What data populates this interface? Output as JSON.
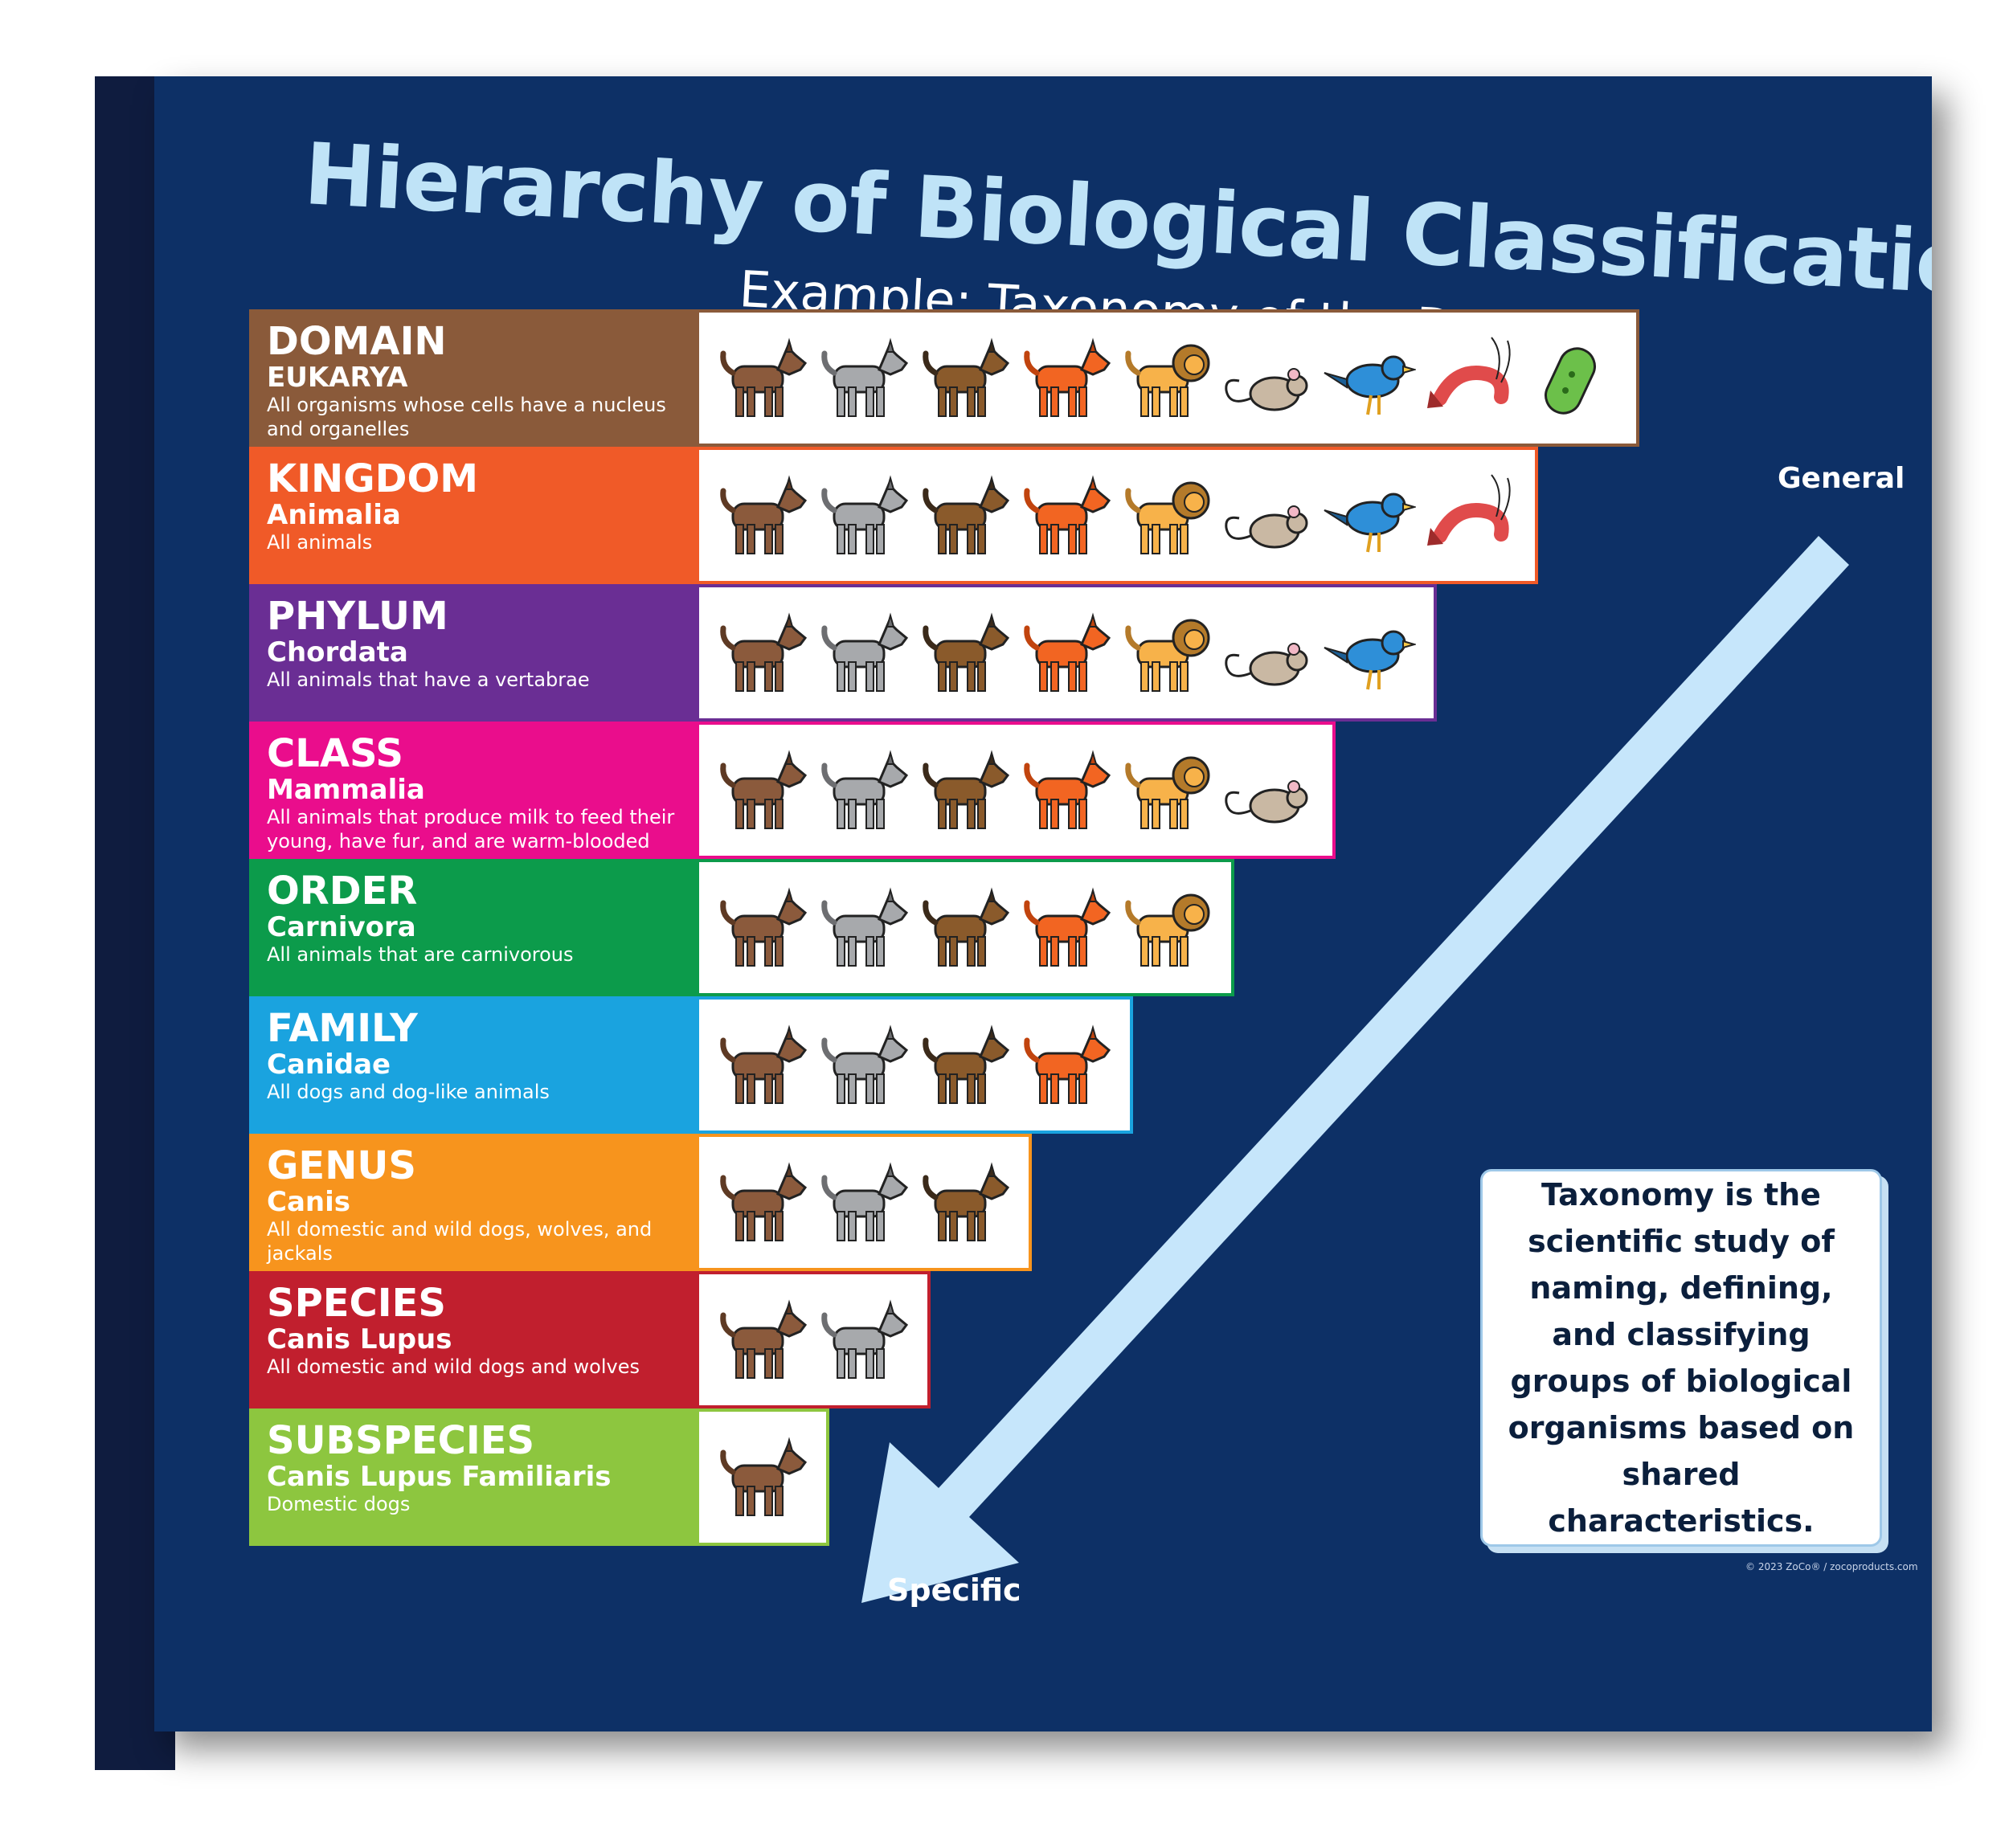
{
  "title": "Hierarchy of Biological Classification",
  "subtitle": "Example: Taxonomy of the Dog",
  "general_label": "General",
  "specific_label": "Specific",
  "definition": "Taxonomy is the scientific study of naming, defining, and classifying groups of biological organisms based on shared characteristics.",
  "copyright": "© 2023 ZoCo® / zocoproducts.com",
  "colors": {
    "background": "#0d3066",
    "arrow": "#c6e6fb",
    "title": "#bfe3f7"
  },
  "animal_icons": [
    "dog-icon",
    "wolf-icon",
    "jackal-icon",
    "fox-icon",
    "lion-icon",
    "mouse-icon",
    "bird-icon",
    "shrimp-icon",
    "bacterium-icon"
  ],
  "ranks": [
    {
      "rank": "DOMAIN",
      "example": "EUKARYA",
      "description": "All organisms whose cells have a nucleus and organelles",
      "color": "#8a5a3a",
      "animal_count": 9
    },
    {
      "rank": "KINGDOM",
      "example": "Animalia",
      "description": "All animals",
      "color": "#f05a28",
      "animal_count": 8
    },
    {
      "rank": "PHYLUM",
      "example": "Chordata",
      "description": "All animals that have a vertabrae",
      "color": "#6a2e94",
      "animal_count": 7
    },
    {
      "rank": "CLASS",
      "example": "Mammalia",
      "description": "All animals that produce milk to feed their young, have fur, and are warm-blooded",
      "color": "#ea0d8c",
      "animal_count": 6
    },
    {
      "rank": "ORDER",
      "example": "Carnivora",
      "description": "All animals that are carnivorous",
      "color": "#0c9b4b",
      "animal_count": 5
    },
    {
      "rank": "FAMILY",
      "example": "Canidae",
      "description": "All dogs and dog-like animals",
      "color": "#1aa3df",
      "animal_count": 4
    },
    {
      "rank": "GENUS",
      "example": "Canis",
      "description": "All domestic and wild dogs, wolves, and jackals",
      "color": "#f7941d",
      "animal_count": 3
    },
    {
      "rank": "SPECIES",
      "example": "Canis Lupus",
      "description": "All domestic and wild dogs and wolves",
      "color": "#c11f2e",
      "animal_count": 2
    },
    {
      "rank": "SUBSPECIES",
      "example": "Canis Lupus Familiaris",
      "description": "Domestic dogs",
      "color": "#8dc63f",
      "animal_count": 1
    }
  ]
}
